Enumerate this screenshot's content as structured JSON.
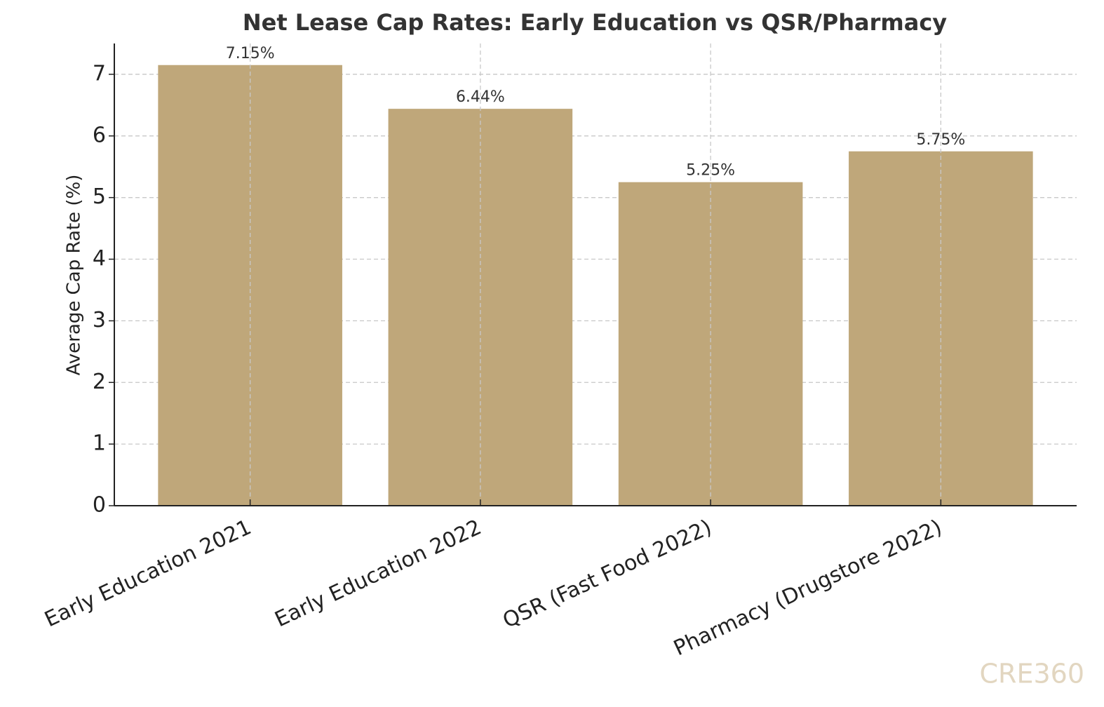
{
  "chart_data": {
    "type": "bar",
    "title": "Net Lease Cap Rates: Early Education vs QSR/Pharmacy",
    "y_label": "Average Cap Rate (%)",
    "categories": [
      "Early Education 2021",
      "Early Education 2022",
      "QSR (Fast Food 2022)",
      "Pharmacy (Drugstore 2022)"
    ],
    "values": [
      7.15,
      6.44,
      5.25,
      5.75
    ],
    "value_labels": [
      "7.15%",
      "6.44%",
      "5.25%",
      "5.75%"
    ],
    "color": "#bfa77a",
    "ylim": [
      0,
      7.5
    ],
    "yticks": [
      0,
      1,
      2,
      3,
      4,
      5,
      6,
      7
    ],
    "grid": true,
    "watermark": "CRE360"
  }
}
